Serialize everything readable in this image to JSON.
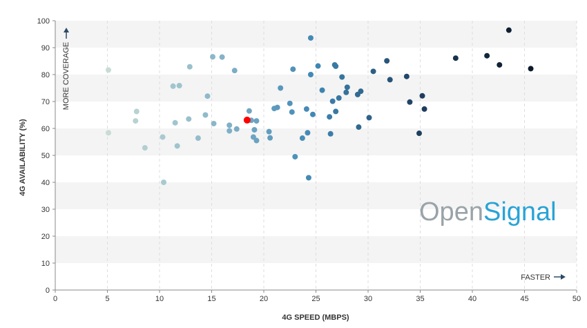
{
  "chart_data": {
    "type": "scatter",
    "xlabel": "4G SPEED (MBPS)",
    "ylabel": "4G AVAILABILITY (%)",
    "xlim": [
      0,
      50
    ],
    "ylim": [
      0,
      100
    ],
    "x_ticks": [
      0,
      5,
      10,
      15,
      20,
      25,
      30,
      35,
      40,
      45,
      50
    ],
    "y_ticks": [
      0,
      10,
      20,
      30,
      40,
      50,
      60,
      70,
      80,
      90,
      100
    ],
    "grid": "alternating horizontal bands, dashed vertical lines",
    "annotations": {
      "y_direction": "MORE COVERAGE",
      "x_direction": "FASTER"
    },
    "logo": {
      "part1": "Open",
      "part2": "Signal"
    },
    "highlight_color": "#ff0000",
    "color_scale": [
      "#c8dcd6",
      "#8cb8c9",
      "#3f87b5",
      "#1f3e5e",
      "#0b1a2a"
    ],
    "points": [
      {
        "x": 5.1,
        "y": 81.7
      },
      {
        "x": 5.1,
        "y": 58.4
      },
      {
        "x": 7.8,
        "y": 66.3
      },
      {
        "x": 7.7,
        "y": 62.8
      },
      {
        "x": 8.6,
        "y": 52.8
      },
      {
        "x": 10.4,
        "y": 40.0
      },
      {
        "x": 10.3,
        "y": 56.8
      },
      {
        "x": 11.3,
        "y": 75.7
      },
      {
        "x": 11.9,
        "y": 75.9
      },
      {
        "x": 11.5,
        "y": 62.1
      },
      {
        "x": 11.7,
        "y": 53.5
      },
      {
        "x": 12.9,
        "y": 82.9
      },
      {
        "x": 12.8,
        "y": 63.5
      },
      {
        "x": 13.7,
        "y": 56.4
      },
      {
        "x": 14.6,
        "y": 72.0
      },
      {
        "x": 14.4,
        "y": 65.0
      },
      {
        "x": 15.1,
        "y": 86.6
      },
      {
        "x": 16.0,
        "y": 86.5
      },
      {
        "x": 15.2,
        "y": 61.8
      },
      {
        "x": 17.2,
        "y": 81.5
      },
      {
        "x": 16.7,
        "y": 61.2
      },
      {
        "x": 16.7,
        "y": 59.1
      },
      {
        "x": 17.4,
        "y": 59.8
      },
      {
        "x": 18.6,
        "y": 66.5
      },
      {
        "x": 18.8,
        "y": 63.0
      },
      {
        "x": 19.3,
        "y": 62.8
      },
      {
        "x": 19.1,
        "y": 59.5
      },
      {
        "x": 19.0,
        "y": 56.8
      },
      {
        "x": 19.3,
        "y": 55.5
      },
      {
        "x": 20.5,
        "y": 58.8
      },
      {
        "x": 20.6,
        "y": 56.5
      },
      {
        "x": 21.0,
        "y": 67.4
      },
      {
        "x": 21.3,
        "y": 67.8
      },
      {
        "x": 21.6,
        "y": 75.0
      },
      {
        "x": 22.5,
        "y": 69.3
      },
      {
        "x": 22.8,
        "y": 82.0
      },
      {
        "x": 22.7,
        "y": 66.1
      },
      {
        "x": 23.0,
        "y": 49.5
      },
      {
        "x": 23.7,
        "y": 56.4
      },
      {
        "x": 24.1,
        "y": 67.2
      },
      {
        "x": 24.2,
        "y": 58.4
      },
      {
        "x": 24.3,
        "y": 41.7
      },
      {
        "x": 24.5,
        "y": 93.6
      },
      {
        "x": 24.5,
        "y": 80.0
      },
      {
        "x": 24.7,
        "y": 65.2
      },
      {
        "x": 25.2,
        "y": 83.2
      },
      {
        "x": 25.6,
        "y": 74.2
      },
      {
        "x": 26.3,
        "y": 64.3
      },
      {
        "x": 26.4,
        "y": 58.0
      },
      {
        "x": 26.6,
        "y": 70.1
      },
      {
        "x": 26.8,
        "y": 83.6
      },
      {
        "x": 26.9,
        "y": 83.1
      },
      {
        "x": 26.9,
        "y": 66.3
      },
      {
        "x": 27.2,
        "y": 71.3
      },
      {
        "x": 27.5,
        "y": 79.1
      },
      {
        "x": 27.9,
        "y": 73.4
      },
      {
        "x": 28.0,
        "y": 75.3
      },
      {
        "x": 29.0,
        "y": 72.6
      },
      {
        "x": 29.1,
        "y": 60.5
      },
      {
        "x": 29.3,
        "y": 73.8
      },
      {
        "x": 30.1,
        "y": 64.0
      },
      {
        "x": 30.5,
        "y": 81.2
      },
      {
        "x": 31.8,
        "y": 85.1
      },
      {
        "x": 32.1,
        "y": 78.1
      },
      {
        "x": 33.7,
        "y": 79.3
      },
      {
        "x": 34.0,
        "y": 69.8
      },
      {
        "x": 34.9,
        "y": 58.2
      },
      {
        "x": 35.2,
        "y": 72.1
      },
      {
        "x": 35.4,
        "y": 67.2
      },
      {
        "x": 38.4,
        "y": 86.1
      },
      {
        "x": 41.4,
        "y": 87.0
      },
      {
        "x": 42.6,
        "y": 83.6
      },
      {
        "x": 43.5,
        "y": 96.5
      },
      {
        "x": 45.6,
        "y": 82.2
      }
    ],
    "highlight_point": {
      "x": 18.4,
      "y": 63.1
    }
  }
}
